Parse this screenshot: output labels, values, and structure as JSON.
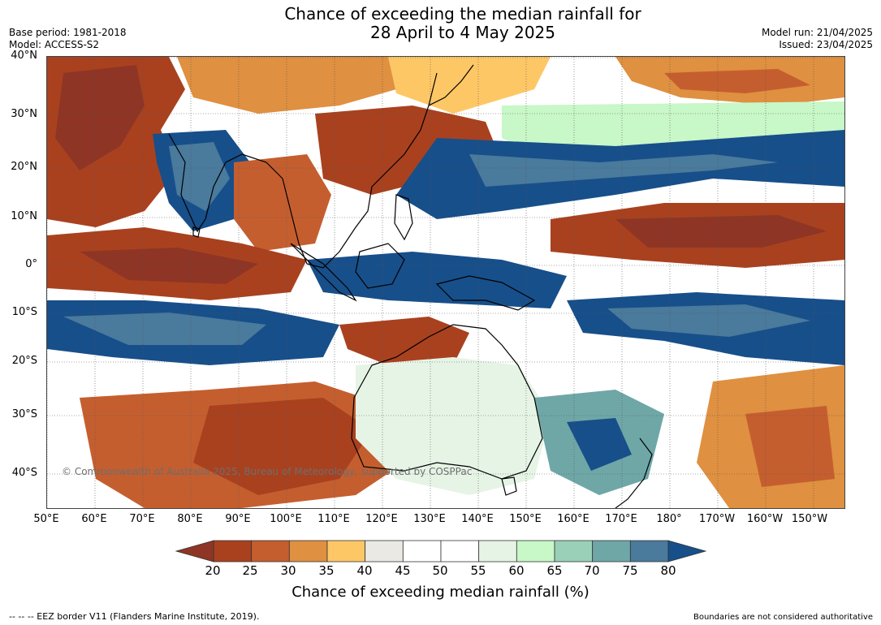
{
  "header": {
    "title_line1": "Chance of exceeding the median rainfall for",
    "title_line2": "28 April to 4 May 2025",
    "base_period": "Base period: 1981-2018",
    "model": "Model: ACCESS-S2",
    "model_run": "Model run: 21/04/2025",
    "issued": "Issued: 23/04/2025"
  },
  "map": {
    "lat_labels": [
      "40°N",
      "30°N",
      "20°N",
      "10°N",
      "0°",
      "10°S",
      "20°S",
      "30°S",
      "40°S"
    ],
    "lon_labels": [
      "50°E",
      "60°E",
      "70°E",
      "80°E",
      "90°E",
      "100°E",
      "110°E",
      "120°E",
      "130°E",
      "140°E",
      "150°E",
      "160°E",
      "170°E",
      "180°",
      "170°W",
      "160°W",
      "150°W"
    ],
    "copyright": "© Commonwealth of Australia 2025, Bureau of Meteorology, supported by COSPPac"
  },
  "colorbar": {
    "ticks": [
      "20",
      "25",
      "30",
      "35",
      "40",
      "45",
      "50",
      "55",
      "60",
      "65",
      "70",
      "75",
      "80"
    ],
    "colors": [
      "#a9411f",
      "#c55e2f",
      "#df9040",
      "#fec766",
      "#ebe9e3",
      "#ffffff",
      "#ffffff",
      "#e6f4e6",
      "#c8f7c8",
      "#9ad0b8",
      "#6fa7a7",
      "#4a7a9c"
    ],
    "below_color": "#8e3525",
    "above_color": "#174f8a",
    "label": "Chance of exceeding median rainfall (%)"
  },
  "footer": {
    "eez_legend": "--  --  -- EEZ border V11 (Flanders Marine Institute, 2019).",
    "disclaimer": "Boundaries are not considered authoritative"
  }
}
